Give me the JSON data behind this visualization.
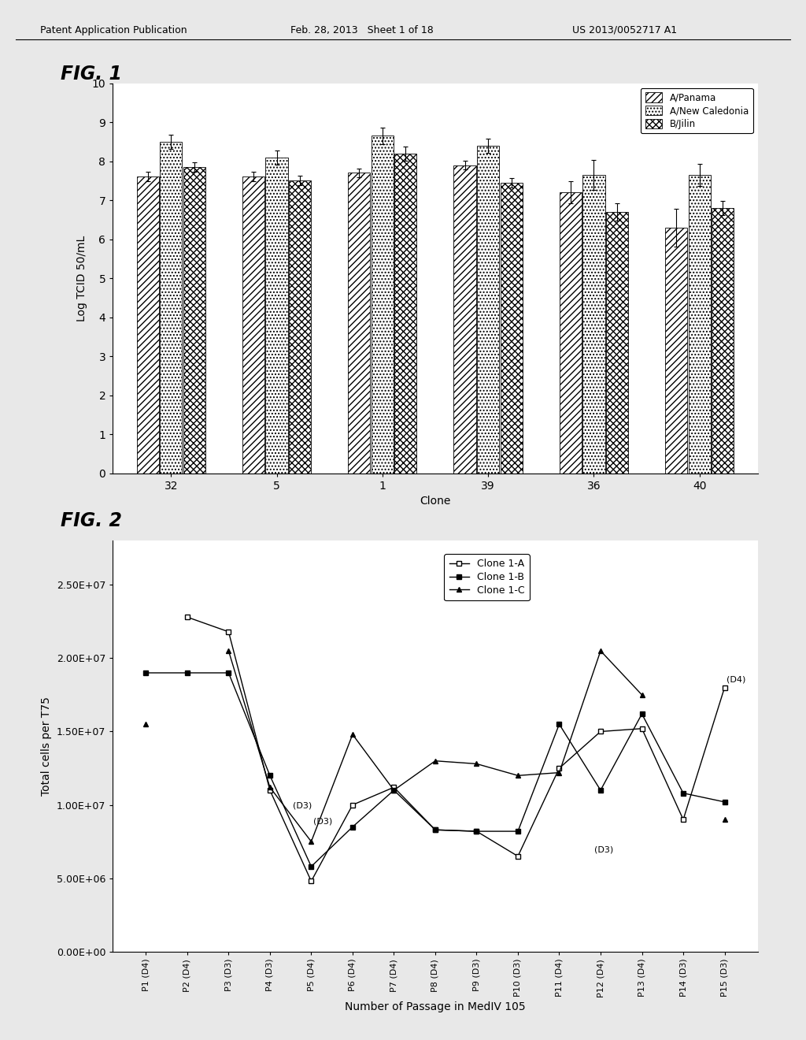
{
  "fig1": {
    "clones": [
      "32",
      "5",
      "1",
      "39",
      "36",
      "40"
    ],
    "bar_width": 0.22,
    "series": [
      {
        "name": "A/Panama",
        "values": [
          7.6,
          7.6,
          7.7,
          7.9,
          7.2,
          6.3
        ],
        "errors": [
          0.12,
          0.12,
          0.12,
          0.12,
          0.28,
          0.48
        ],
        "hatch": "////",
        "facecolor": "white",
        "edgecolor": "black"
      },
      {
        "name": "A/New Caledonia",
        "values": [
          8.5,
          8.1,
          8.65,
          8.4,
          7.65,
          7.65
        ],
        "errors": [
          0.18,
          0.18,
          0.22,
          0.18,
          0.38,
          0.28
        ],
        "hatch": "....",
        "facecolor": "white",
        "edgecolor": "black"
      },
      {
        "name": "B/Jilin",
        "values": [
          7.85,
          7.5,
          8.2,
          7.45,
          6.7,
          6.8
        ],
        "errors": [
          0.12,
          0.12,
          0.18,
          0.12,
          0.22,
          0.18
        ],
        "hatch": "xxxx",
        "facecolor": "white",
        "edgecolor": "black"
      }
    ],
    "ylabel": "Log TCID 50/mL",
    "xlabel": "Clone",
    "ylim": [
      0,
      10
    ],
    "yticks": [
      0,
      1,
      2,
      3,
      4,
      5,
      6,
      7,
      8,
      9,
      10
    ]
  },
  "fig2": {
    "xlabel": "Number of Passage in MedIV 105",
    "ylabel": "Total cells per T75",
    "xtick_labels": [
      "P1 (D4)",
      "P2 (D4)",
      "P3 (D3)",
      "P4 (D3)",
      "P5 (D4)",
      "P6 (D4)",
      "P7 (D4)",
      "P8 (D4)",
      "P9 (D3)",
      "P10 (D3)",
      "P11 (D4)",
      "P12 (D4)",
      "P13 (D4)",
      "P14 (D3)",
      "P15 (D3)"
    ],
    "ylim": [
      0,
      28000000.0
    ],
    "yticks": [
      0,
      5000000,
      10000000,
      15000000,
      20000000,
      25000000
    ],
    "ytick_labels": [
      "0.00E+00",
      "5.00E+06",
      "1.00E+07",
      "1.50E+07",
      "2.00E+07",
      "2.50E+07"
    ],
    "clone_a": [
      null,
      22800000.0,
      21800000.0,
      11000000.0,
      4800000.0,
      10000000.0,
      11200000.0,
      8300000.0,
      8200000.0,
      6500000.0,
      12500000.0,
      15000000.0,
      15200000.0,
      9000000.0,
      18000000.0
    ],
    "clone_b": [
      19000000.0,
      19000000.0,
      19000000.0,
      12000000.0,
      5800000.0,
      8500000.0,
      11000000.0,
      8300000.0,
      8200000.0,
      8200000.0,
      15500000.0,
      11000000.0,
      16200000.0,
      10800000.0,
      10200000.0
    ],
    "clone_c": [
      15500000.0,
      null,
      20500000.0,
      11200000.0,
      7500000.0,
      14800000.0,
      11000000.0,
      13000000.0,
      12800000.0,
      12000000.0,
      12200000.0,
      20500000.0,
      17500000.0,
      null,
      9000000.0
    ]
  },
  "header": {
    "left": "Patent Application Publication",
    "center": "Feb. 28, 2013   Sheet 1 of 18",
    "right": "US 2013/0052717 A1"
  }
}
